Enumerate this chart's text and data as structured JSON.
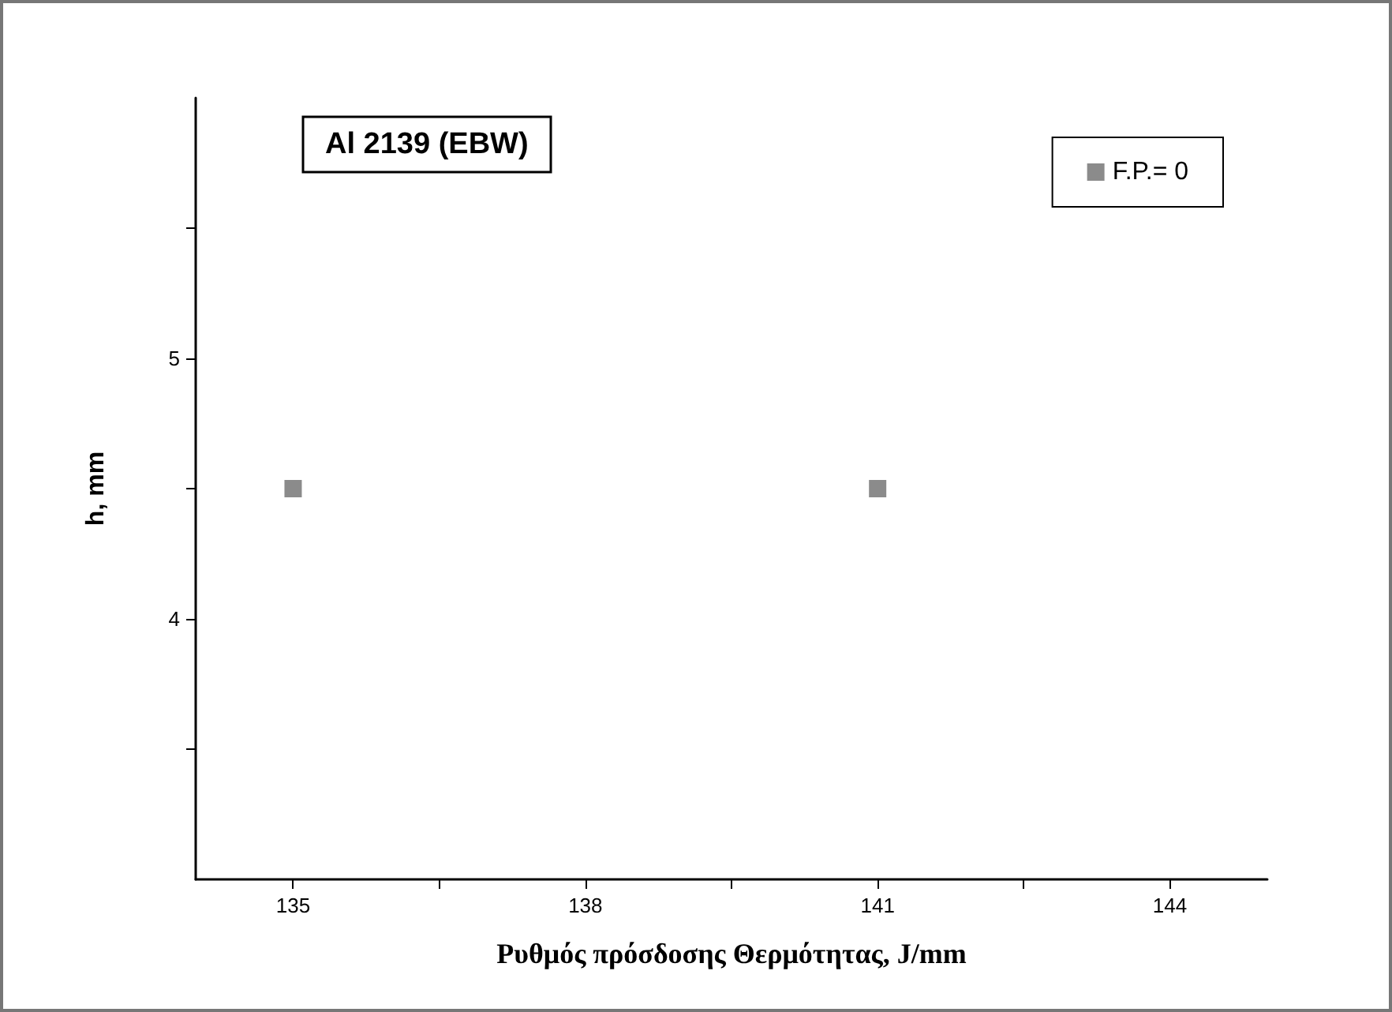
{
  "chart_data": {
    "type": "scatter",
    "title": "Al 2139 (EBW)",
    "xlabel": "Ρυθμός πρόσδοσης Θερμότητας, J/mm",
    "ylabel": "h, mm",
    "x": [
      135,
      141
    ],
    "series": [
      {
        "name": "F.P.= 0",
        "color": "#6e6e6e",
        "values": [
          4.5,
          4.5
        ]
      }
    ],
    "xlim": [
      134,
      145
    ],
    "xticks": [
      135,
      {
        "value": 136.5,
        "label": null
      },
      138,
      {
        "value": 139.5,
        "label": null
      },
      141,
      {
        "value": 142.5,
        "label": null
      },
      144
    ],
    "ylim": [
      3,
      6
    ],
    "yticks": [
      {
        "value": 3.5,
        "label": null
      },
      4,
      {
        "value": 4.5,
        "label": null
      },
      5,
      {
        "value": 5.5,
        "label": null
      }
    ],
    "marker": "square",
    "legend": "top right",
    "grid": false
  }
}
